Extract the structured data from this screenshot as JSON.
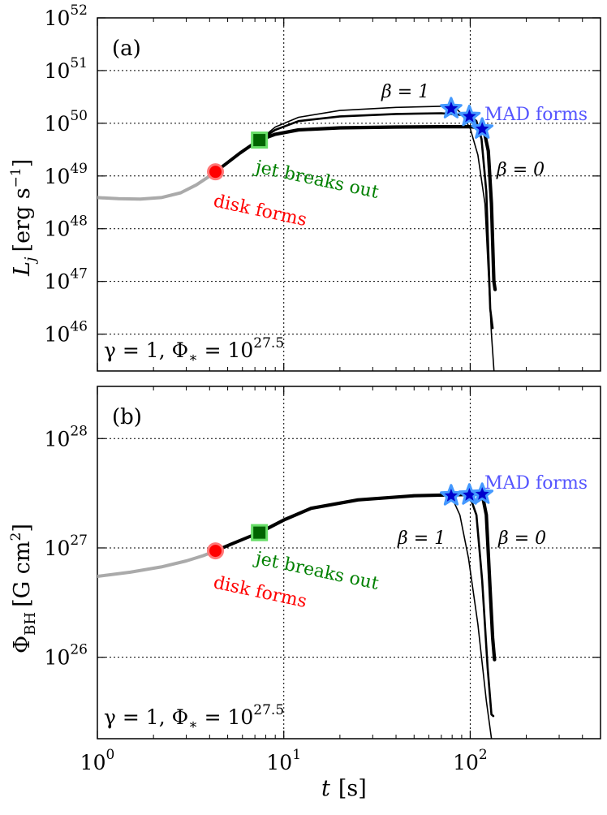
{
  "chart_data": [
    {
      "type": "line",
      "panel_label": "(a)",
      "ylabel": "L_j [erg s^-1]",
      "ylabel_text": {
        "base": "L",
        "sub": "j",
        "units": "[erg s",
        "units_exp": "−1",
        "close": "]"
      },
      "xscale": "log",
      "yscale": "log",
      "xlim": [
        1,
        500
      ],
      "ylim": [
        2e+45,
        1e+52
      ],
      "ytick_exponents": [
        "52",
        "51",
        "50",
        "49",
        "48",
        "47",
        "46"
      ],
      "ytick_values": [
        1e+52,
        1e+51,
        1e+50,
        1e+49,
        1e+48,
        1e+47,
        1e+46
      ],
      "ytick_base": "10",
      "grid": true,
      "series": [
        {
          "name": "pre-disk",
          "color": "#aaaaaa",
          "points": [
            [
              1.0,
              3.9e+48
            ],
            [
              1.3,
              3.7e+48
            ],
            [
              1.7,
              3.65e+48
            ],
            [
              2.2,
              3.9e+48
            ],
            [
              2.8,
              4.8e+48
            ],
            [
              3.4,
              6.8e+48
            ],
            [
              3.9,
              9.4e+48
            ],
            [
              4.3,
              1.2e+49
            ]
          ]
        },
        {
          "name": "disk-to-breakout",
          "color": "#000000",
          "points": [
            [
              4.3,
              1.2e+49
            ],
            [
              5.0,
              1.8e+49
            ],
            [
              5.8,
              2.7e+49
            ],
            [
              6.6,
              3.7e+49
            ],
            [
              7.4,
              4.8e+49
            ]
          ]
        },
        {
          "name": "beta=1",
          "color": "#000000",
          "points": [
            [
              7.4,
              4.8e+49
            ],
            [
              9,
              8.5e+49
            ],
            [
              12,
              1.3e+50
            ],
            [
              20,
              1.75e+50
            ],
            [
              40,
              2e+50
            ],
            [
              70,
              2.1e+50
            ],
            [
              82,
              2.1e+50
            ],
            [
              90,
              1.5e+50
            ],
            [
              100,
              8e+49
            ],
            [
              110,
              2.5e+49
            ],
            [
              120,
              3e+48
            ],
            [
              130,
              1e+46
            ],
            [
              136,
              1e+45
            ]
          ]
        },
        {
          "name": "beta=0.5",
          "color": "#000000",
          "points": [
            [
              7.4,
              4.8e+49
            ],
            [
              9,
              7.5e+49
            ],
            [
              12,
              1.1e+50
            ],
            [
              20,
              1.35e+50
            ],
            [
              40,
              1.5e+50
            ],
            [
              70,
              1.55e+50
            ],
            [
              100,
              1.4e+50
            ],
            [
              108,
              1.1e+50
            ],
            [
              115,
              5e+49
            ],
            [
              122,
              5e+48
            ],
            [
              128,
              3e+46
            ],
            [
              132,
              1.3e+46
            ]
          ]
        },
        {
          "name": "beta=0",
          "color": "#000000",
          "points": [
            [
              7.4,
              4.8e+49
            ],
            [
              9,
              6.2e+49
            ],
            [
              12,
              7.5e+49
            ],
            [
              20,
              8.2e+49
            ],
            [
              40,
              8.5e+49
            ],
            [
              70,
              8.6e+49
            ],
            [
              100,
              8.6e+49
            ],
            [
              118,
              8e+49
            ],
            [
              125,
              3e+49
            ],
            [
              130,
              3e+48
            ],
            [
              134,
              1e+47
            ],
            [
              136,
              7e+46
            ]
          ]
        }
      ],
      "markers": [
        {
          "kind": "disk-forms",
          "x": 4.3,
          "y": 1.2e+49,
          "color": "#ff0000"
        },
        {
          "kind": "jet-breaks-out",
          "x": 7.4,
          "y": 4.8e+49,
          "color": "#008000"
        },
        {
          "kind": "mad-forms",
          "x": 79,
          "y": 1.9e+50,
          "color": "#0000cc"
        },
        {
          "kind": "mad-forms",
          "x": 99,
          "y": 1.35e+50,
          "color": "#0000cc"
        },
        {
          "kind": "mad-forms",
          "x": 116,
          "y": 7.8e+49,
          "color": "#0000cc"
        }
      ],
      "annotations": {
        "disk_forms": "disk forms",
        "jet_breaks_out": "jet breaks out",
        "mad_forms": "MAD forms",
        "beta_one": "β = 1",
        "beta_zero": "β = 0",
        "params": {
          "main": "γ = 1,  Φ",
          "sub": "∗",
          "eq": " = 10",
          "exp": "27.5"
        }
      }
    },
    {
      "type": "line",
      "panel_label": "(b)",
      "ylabel": "Φ_BH [G cm^2]",
      "ylabel_text": {
        "base": "Φ",
        "sub": "BH",
        "units": "[G cm",
        "units_exp": "2",
        "close": "]"
      },
      "xscale": "log",
      "yscale": "log",
      "xlim": [
        1,
        500
      ],
      "ylim": [
        1.8e+25,
        3e+28
      ],
      "ytick_exponents": [
        "28",
        "27",
        "26"
      ],
      "ytick_values": [
        1e+28,
        1e+27,
        1e+26
      ],
      "ytick_base": "10",
      "grid": true,
      "series": [
        {
          "name": "pre-disk",
          "color": "#aaaaaa",
          "points": [
            [
              1.0,
              5.5e+26
            ],
            [
              1.5,
              6e+26
            ],
            [
              2.2,
              6.7e+26
            ],
            [
              3.0,
              7.6e+26
            ],
            [
              3.7,
              8.5e+26
            ],
            [
              4.3,
              9.4e+26
            ]
          ]
        },
        {
          "name": "disk-to-breakout",
          "color": "#000000",
          "points": [
            [
              4.3,
              9.4e+26
            ],
            [
              5.2,
              1.08e+27
            ],
            [
              6.2,
              1.22e+27
            ],
            [
              7.4,
              1.38e+27
            ]
          ]
        },
        {
          "name": "beta=1",
          "color": "#000000",
          "points": [
            [
              7.4,
              1.38e+27
            ],
            [
              10,
              1.8e+27
            ],
            [
              14,
              2.3e+27
            ],
            [
              25,
              2.75e+27
            ],
            [
              50,
              3e+27
            ],
            [
              79,
              3e+27
            ],
            [
              88,
              2e+27
            ],
            [
              98,
              8e+26
            ],
            [
              110,
              2e+26
            ],
            [
              122,
              4e+25
            ],
            [
              132,
              1.5e+25
            ]
          ]
        },
        {
          "name": "beta=0.5",
          "color": "#000000",
          "points": [
            [
              7.4,
              1.38e+27
            ],
            [
              10,
              1.8e+27
            ],
            [
              14,
              2.3e+27
            ],
            [
              25,
              2.75e+27
            ],
            [
              50,
              3e+27
            ],
            [
              99,
              3.05e+27
            ],
            [
              108,
              2e+27
            ],
            [
              116,
              5e+26
            ],
            [
              124,
              8e+25
            ],
            [
              130,
              3e+25
            ],
            [
              133,
              2.9e+25
            ]
          ]
        },
        {
          "name": "beta=0",
          "color": "#000000",
          "points": [
            [
              7.4,
              1.38e+27
            ],
            [
              10,
              1.8e+27
            ],
            [
              14,
              2.3e+27
            ],
            [
              25,
              2.75e+27
            ],
            [
              50,
              3e+27
            ],
            [
              116,
              3.1e+27
            ],
            [
              122,
              2e+27
            ],
            [
              128,
              4e+26
            ],
            [
              132,
              1.5e+26
            ],
            [
              135,
              9.5e+25
            ]
          ]
        }
      ],
      "markers": [
        {
          "kind": "disk-forms",
          "x": 4.3,
          "y": 9.4e+26,
          "color": "#ff0000"
        },
        {
          "kind": "jet-breaks-out",
          "x": 7.4,
          "y": 1.38e+27,
          "color": "#008000"
        },
        {
          "kind": "mad-forms",
          "x": 79,
          "y": 3e+27,
          "color": "#0000cc"
        },
        {
          "kind": "mad-forms",
          "x": 99,
          "y": 3.05e+27,
          "color": "#0000cc"
        },
        {
          "kind": "mad-forms",
          "x": 116,
          "y": 3.1e+27,
          "color": "#0000cc"
        }
      ],
      "annotations": {
        "disk_forms": "disk forms",
        "jet_breaks_out": "jet breaks out",
        "mad_forms": "MAD forms",
        "beta_one": "β = 1",
        "beta_zero": "β = 0",
        "params": {
          "main": "γ = 1,  Φ",
          "sub": "∗",
          "eq": " = 10",
          "exp": "27.5"
        }
      }
    }
  ],
  "xaxis": {
    "label": {
      "base": "t",
      "units": "[s]"
    },
    "tick_values": [
      1,
      10,
      100
    ],
    "tick_base": "10",
    "tick_exponents": [
      "0",
      "1",
      "2"
    ]
  },
  "colors": {
    "pre_disk": "#aaaaaa",
    "curve": "#000000",
    "disk_marker": "#ff0000",
    "disk_marker_edge": "#ff7777",
    "breakout_marker": "#006400",
    "breakout_marker_edge": "#66dd66",
    "star": "#0000cc",
    "star_edge": "#4499ff",
    "disk_text": "#ff0000",
    "breakout_text": "#008000",
    "mad_text": "#5555ff"
  }
}
